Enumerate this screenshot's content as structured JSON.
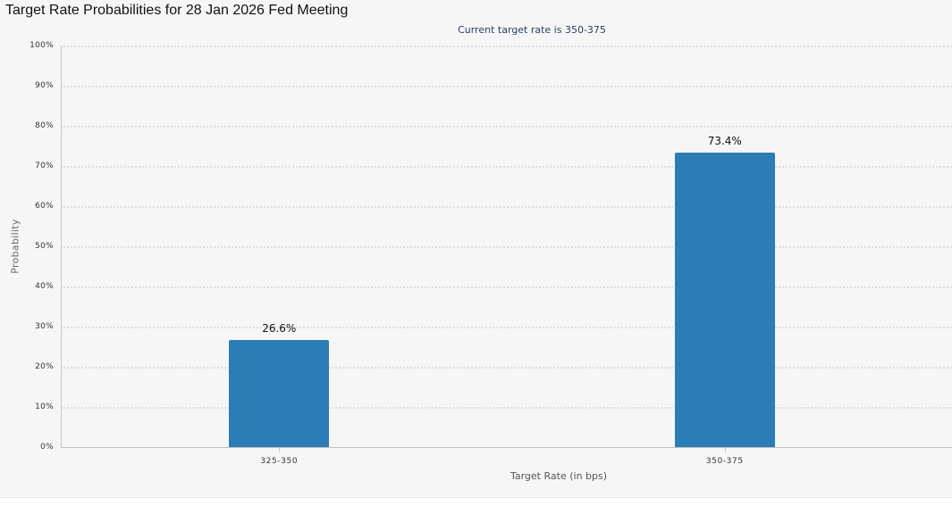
{
  "header": {
    "title": "Target Rate Probabilities for 28 Jan 2026 Fed Meeting",
    "subtitle": "Current target rate is 350-375"
  },
  "colors": {
    "bar": "#2b7db5",
    "background": "#f6f6f6",
    "gridline": "#dddddd",
    "subtitle": "#2c3e66"
  },
  "y_ticks": [
    "0%",
    "10%",
    "20%",
    "30%",
    "40%",
    "50%",
    "60%",
    "70%",
    "80%",
    "90%",
    "100%"
  ],
  "bars": [
    {
      "category": "325-350",
      "value": 26.6,
      "label": "26.6%"
    },
    {
      "category": "350-375",
      "value": 73.4,
      "label": "73.4%"
    }
  ],
  "axes": {
    "xlabel": "Target Rate (in bps)",
    "ylabel": "Probability"
  },
  "chart_data": {
    "type": "bar",
    "title": "Target Rate Probabilities for 28 Jan 2026 Fed Meeting",
    "subtitle": "Current target rate is 350-375",
    "categories": [
      "325-350",
      "350-375"
    ],
    "values": [
      26.6,
      73.4
    ],
    "data_labels": [
      "26.6%",
      "73.4%"
    ],
    "xlabel": "Target Rate (in bps)",
    "ylabel": "Probability",
    "ylim": [
      0,
      100
    ],
    "y_tick_labels": [
      "0%",
      "10%",
      "20%",
      "30%",
      "40%",
      "50%",
      "60%",
      "70%",
      "80%",
      "90%",
      "100%"
    ],
    "grid": true,
    "grid_style": "dotted horizontal",
    "legend": null,
    "series_color": "#2b7db5"
  }
}
